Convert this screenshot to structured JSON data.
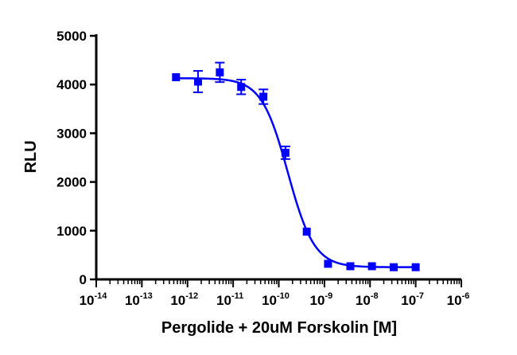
{
  "chart_data": {
    "type": "scatter",
    "xlabel": "Pergolide + 20uM Forskolin [M]",
    "ylabel": "RLU",
    "x_scale": "log",
    "xlim": [
      1e-14,
      1e-06
    ],
    "ylim": [
      0,
      5000
    ],
    "x_ticks": [
      {
        "base": "10",
        "exp": "-14"
      },
      {
        "base": "10",
        "exp": "-13"
      },
      {
        "base": "10",
        "exp": "-12"
      },
      {
        "base": "10",
        "exp": "-11"
      },
      {
        "base": "10",
        "exp": "-10"
      },
      {
        "base": "10",
        "exp": "-9"
      },
      {
        "base": "10",
        "exp": "-8"
      },
      {
        "base": "10",
        "exp": "-7"
      },
      {
        "base": "10",
        "exp": "-6"
      }
    ],
    "y_ticks": [
      "0",
      "1000",
      "2000",
      "3000",
      "4000",
      "5000"
    ],
    "color": "#0000ff",
    "grid": false,
    "legend": "none",
    "series": [
      {
        "x": [
          5.6e-13,
          1.7e-12,
          5.1e-12,
          1.5e-11,
          4.6e-11,
          1.4e-10,
          4.1e-10,
          1.2e-09,
          3.7e-09,
          1.1e-08,
          3.3e-08,
          1e-07
        ],
        "y": [
          4150,
          4060,
          4250,
          3950,
          3750,
          2600,
          980,
          320,
          270,
          270,
          250,
          250
        ],
        "err": [
          0,
          220,
          200,
          150,
          150,
          130,
          0,
          0,
          0,
          0,
          0,
          0
        ]
      }
    ],
    "fit": {
      "model": "sigmoidal dose-response",
      "top": 4130,
      "bottom": 250,
      "log_ic50": -9.8,
      "hill": -1.5,
      "x_range": [
        5.6e-13,
        1e-07
      ]
    }
  }
}
